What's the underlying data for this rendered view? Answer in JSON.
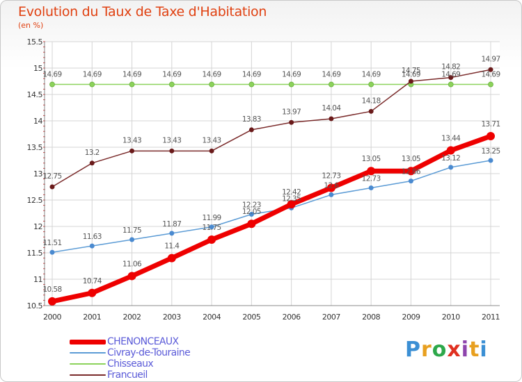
{
  "header": {
    "title": "Evolution du Taux de Taxe d'Habitation",
    "subtitle": "(en %)"
  },
  "logo": {
    "text": "Proxiti",
    "colors": [
      "#3b8fd4",
      "#e8a020",
      "#2da84a",
      "#e03020",
      "#8e44ad",
      "#e8a020",
      "#3b8fd4"
    ]
  },
  "chart_data": {
    "type": "line",
    "x": [
      "2000",
      "2001",
      "2002",
      "2003",
      "2004",
      "2005",
      "2006",
      "2007",
      "2008",
      "2009",
      "2010",
      "2011"
    ],
    "ylim": [
      10.5,
      15.5
    ],
    "yticks": [
      "10.5",
      "11",
      "11.5",
      "12",
      "12.5",
      "13",
      "13.5",
      "14",
      "14.5",
      "15",
      "15.5"
    ],
    "grid": true,
    "legend_position": "bottom-left",
    "series": [
      {
        "name": "CHENONCEAUX",
        "color": "#ee0000",
        "values": [
          10.58,
          10.74,
          11.06,
          11.4,
          11.75,
          12.05,
          12.42,
          12.73,
          13.05,
          13.05,
          13.44,
          13.71
        ],
        "labels": [
          "10.58",
          "10.74",
          "11.06",
          "11.4",
          "11.75",
          "12.05",
          "12.42",
          "12.73",
          "13.05",
          "13.05",
          "13.44",
          "13.71"
        ],
        "label_colors": [
          "#555555",
          "#555555",
          "#555555",
          "#555555",
          "#555555",
          "#555555",
          "#555555",
          "#555555",
          "#555555",
          "#555555",
          "#555555",
          "#555555"
        ]
      },
      {
        "name": "Civray-de-Touraine",
        "color": "#5b9bd5",
        "values": [
          11.51,
          11.63,
          11.75,
          11.87,
          11.99,
          12.23,
          12.35,
          12.6,
          12.73,
          12.86,
          13.12,
          13.25
        ],
        "labels": [
          "11.51",
          "11.63",
          "11.75",
          "11.87",
          "11.99",
          "12.23",
          "12.35",
          "12.6",
          "12.73",
          "12.86",
          "13.12",
          "13.25"
        ]
      },
      {
        "name": "Chisseaux",
        "color": "#8cd25a",
        "values": [
          14.69,
          14.69,
          14.69,
          14.69,
          14.69,
          14.69,
          14.69,
          14.69,
          14.69,
          14.69,
          14.69,
          14.69
        ],
        "labels": [
          "14.69",
          "14.69",
          "14.69",
          "14.69",
          "14.69",
          "14.69",
          "14.69",
          "14.69",
          "14.69",
          "14.69",
          "14.69",
          "14.69"
        ]
      },
      {
        "name": "Francueil",
        "color": "#7a2a2a",
        "values": [
          12.75,
          13.2,
          13.43,
          13.43,
          13.43,
          13.83,
          13.97,
          14.04,
          14.18,
          14.75,
          14.82,
          14.97
        ],
        "labels": [
          "12.75",
          "13.2",
          "13.43",
          "13.43",
          "13.43",
          "13.83",
          "13.97",
          "14.04",
          "14.18",
          "14.75",
          "14.82",
          "14.97"
        ]
      }
    ]
  },
  "legend": {
    "items": [
      {
        "label": "CHENONCEAUX",
        "color": "#ee0000",
        "text_color": "#5a5ad8"
      },
      {
        "label": "Civray-de-Touraine",
        "color": "#5b9bd5",
        "text_color": "#5a5ad8"
      },
      {
        "label": "Chisseaux",
        "color": "#8cd25a",
        "text_color": "#5a5ad8"
      },
      {
        "label": "Francueil",
        "color": "#7a2a2a",
        "text_color": "#5a5ad8"
      }
    ]
  }
}
